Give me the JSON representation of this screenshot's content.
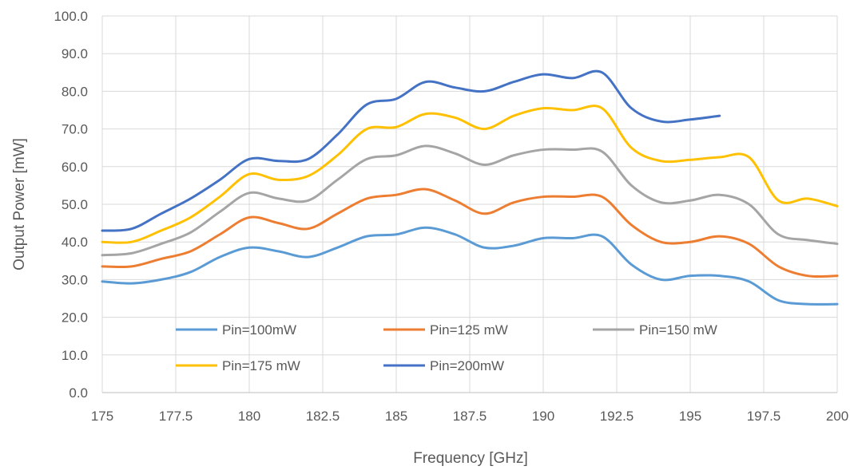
{
  "chart_data": {
    "type": "line",
    "title": "",
    "xlabel": "Frequency [GHz]",
    "ylabel": "Output Power [mW]",
    "xlim": [
      175,
      200
    ],
    "ylim": [
      0,
      100
    ],
    "grid": true,
    "legend_position": "inside-lower-center",
    "x_ticks": [
      "175",
      "177.5",
      "180",
      "182.5",
      "185",
      "187.5",
      "190",
      "192.5",
      "195",
      "197.5",
      "200"
    ],
    "y_ticks": [
      "0.0",
      "10.0",
      "20.0",
      "30.0",
      "40.0",
      "50.0",
      "60.0",
      "70.0",
      "80.0",
      "90.0",
      "100.0"
    ],
    "series": [
      {
        "name": "Pin=100mW",
        "color": "#5B9BD5",
        "x": [
          175,
          176,
          177,
          178,
          179,
          180,
          181,
          182,
          183,
          184,
          185,
          186,
          187,
          188,
          189,
          190,
          191,
          192,
          193,
          194,
          195,
          196,
          197,
          198,
          199,
          200
        ],
        "y": [
          29.5,
          29,
          30,
          32,
          36,
          38.5,
          37.5,
          36,
          38.5,
          41.5,
          42,
          43.8,
          42,
          38.5,
          39,
          41,
          41,
          41.5,
          34,
          30,
          31,
          31,
          29.5,
          24.5,
          23.5,
          23.5
        ]
      },
      {
        "name": "Pin=125 mW",
        "color": "#ED7D31",
        "x": [
          175,
          176,
          177,
          178,
          179,
          180,
          181,
          182,
          183,
          184,
          185,
          186,
          187,
          188,
          189,
          190,
          191,
          192,
          193,
          194,
          195,
          196,
          197,
          198,
          199,
          200
        ],
        "y": [
          33.5,
          33.5,
          35.5,
          37.5,
          42,
          46.5,
          45,
          43.5,
          47.5,
          51.5,
          52.5,
          54,
          51,
          47.5,
          50.5,
          52,
          52,
          52,
          44.5,
          40,
          40,
          41.5,
          39.5,
          33.5,
          31,
          31
        ]
      },
      {
        "name": "Pin=150 mW",
        "color": "#A5A5A5",
        "x": [
          175,
          176,
          177,
          178,
          179,
          180,
          181,
          182,
          183,
          184,
          185,
          186,
          187,
          188,
          189,
          190,
          191,
          192,
          193,
          194,
          195,
          196,
          197,
          198,
          199,
          200
        ],
        "y": [
          36.5,
          37,
          39.5,
          42.5,
          48,
          53,
          51.5,
          51,
          56.5,
          62,
          63,
          65.5,
          63.5,
          60.5,
          63,
          64.5,
          64.5,
          64,
          55,
          50.5,
          51,
          52.5,
          50,
          42,
          40.5,
          39.5
        ]
      },
      {
        "name": "Pin=175 mW",
        "color": "#FFC000",
        "x": [
          175,
          176,
          177,
          178,
          179,
          180,
          181,
          182,
          183,
          184,
          185,
          186,
          187,
          188,
          189,
          190,
          191,
          192,
          193,
          194,
          195,
          196,
          197,
          198,
          199,
          200
        ],
        "y": [
          40,
          40,
          43,
          46.5,
          52,
          58,
          56.5,
          57.5,
          63,
          70,
          70.5,
          74,
          73,
          70,
          73.5,
          75.5,
          75,
          75.5,
          65,
          61.5,
          61.8,
          62.5,
          62.5,
          51,
          51.5,
          49.5
        ]
      },
      {
        "name": "Pin=200mW",
        "color": "#4472C4",
        "x": [
          175,
          176,
          177,
          178,
          179,
          180,
          181,
          182,
          183,
          184,
          185,
          186,
          187,
          188,
          189,
          190,
          191,
          192,
          193,
          194,
          195,
          196
        ],
        "y": [
          43,
          43.5,
          47.5,
          51.5,
          56.5,
          62,
          61.5,
          62,
          68.5,
          76.5,
          78,
          82.5,
          81,
          80,
          82.5,
          84.5,
          83.5,
          85,
          75.5,
          72,
          72.5,
          73.5
        ]
      }
    ]
  }
}
